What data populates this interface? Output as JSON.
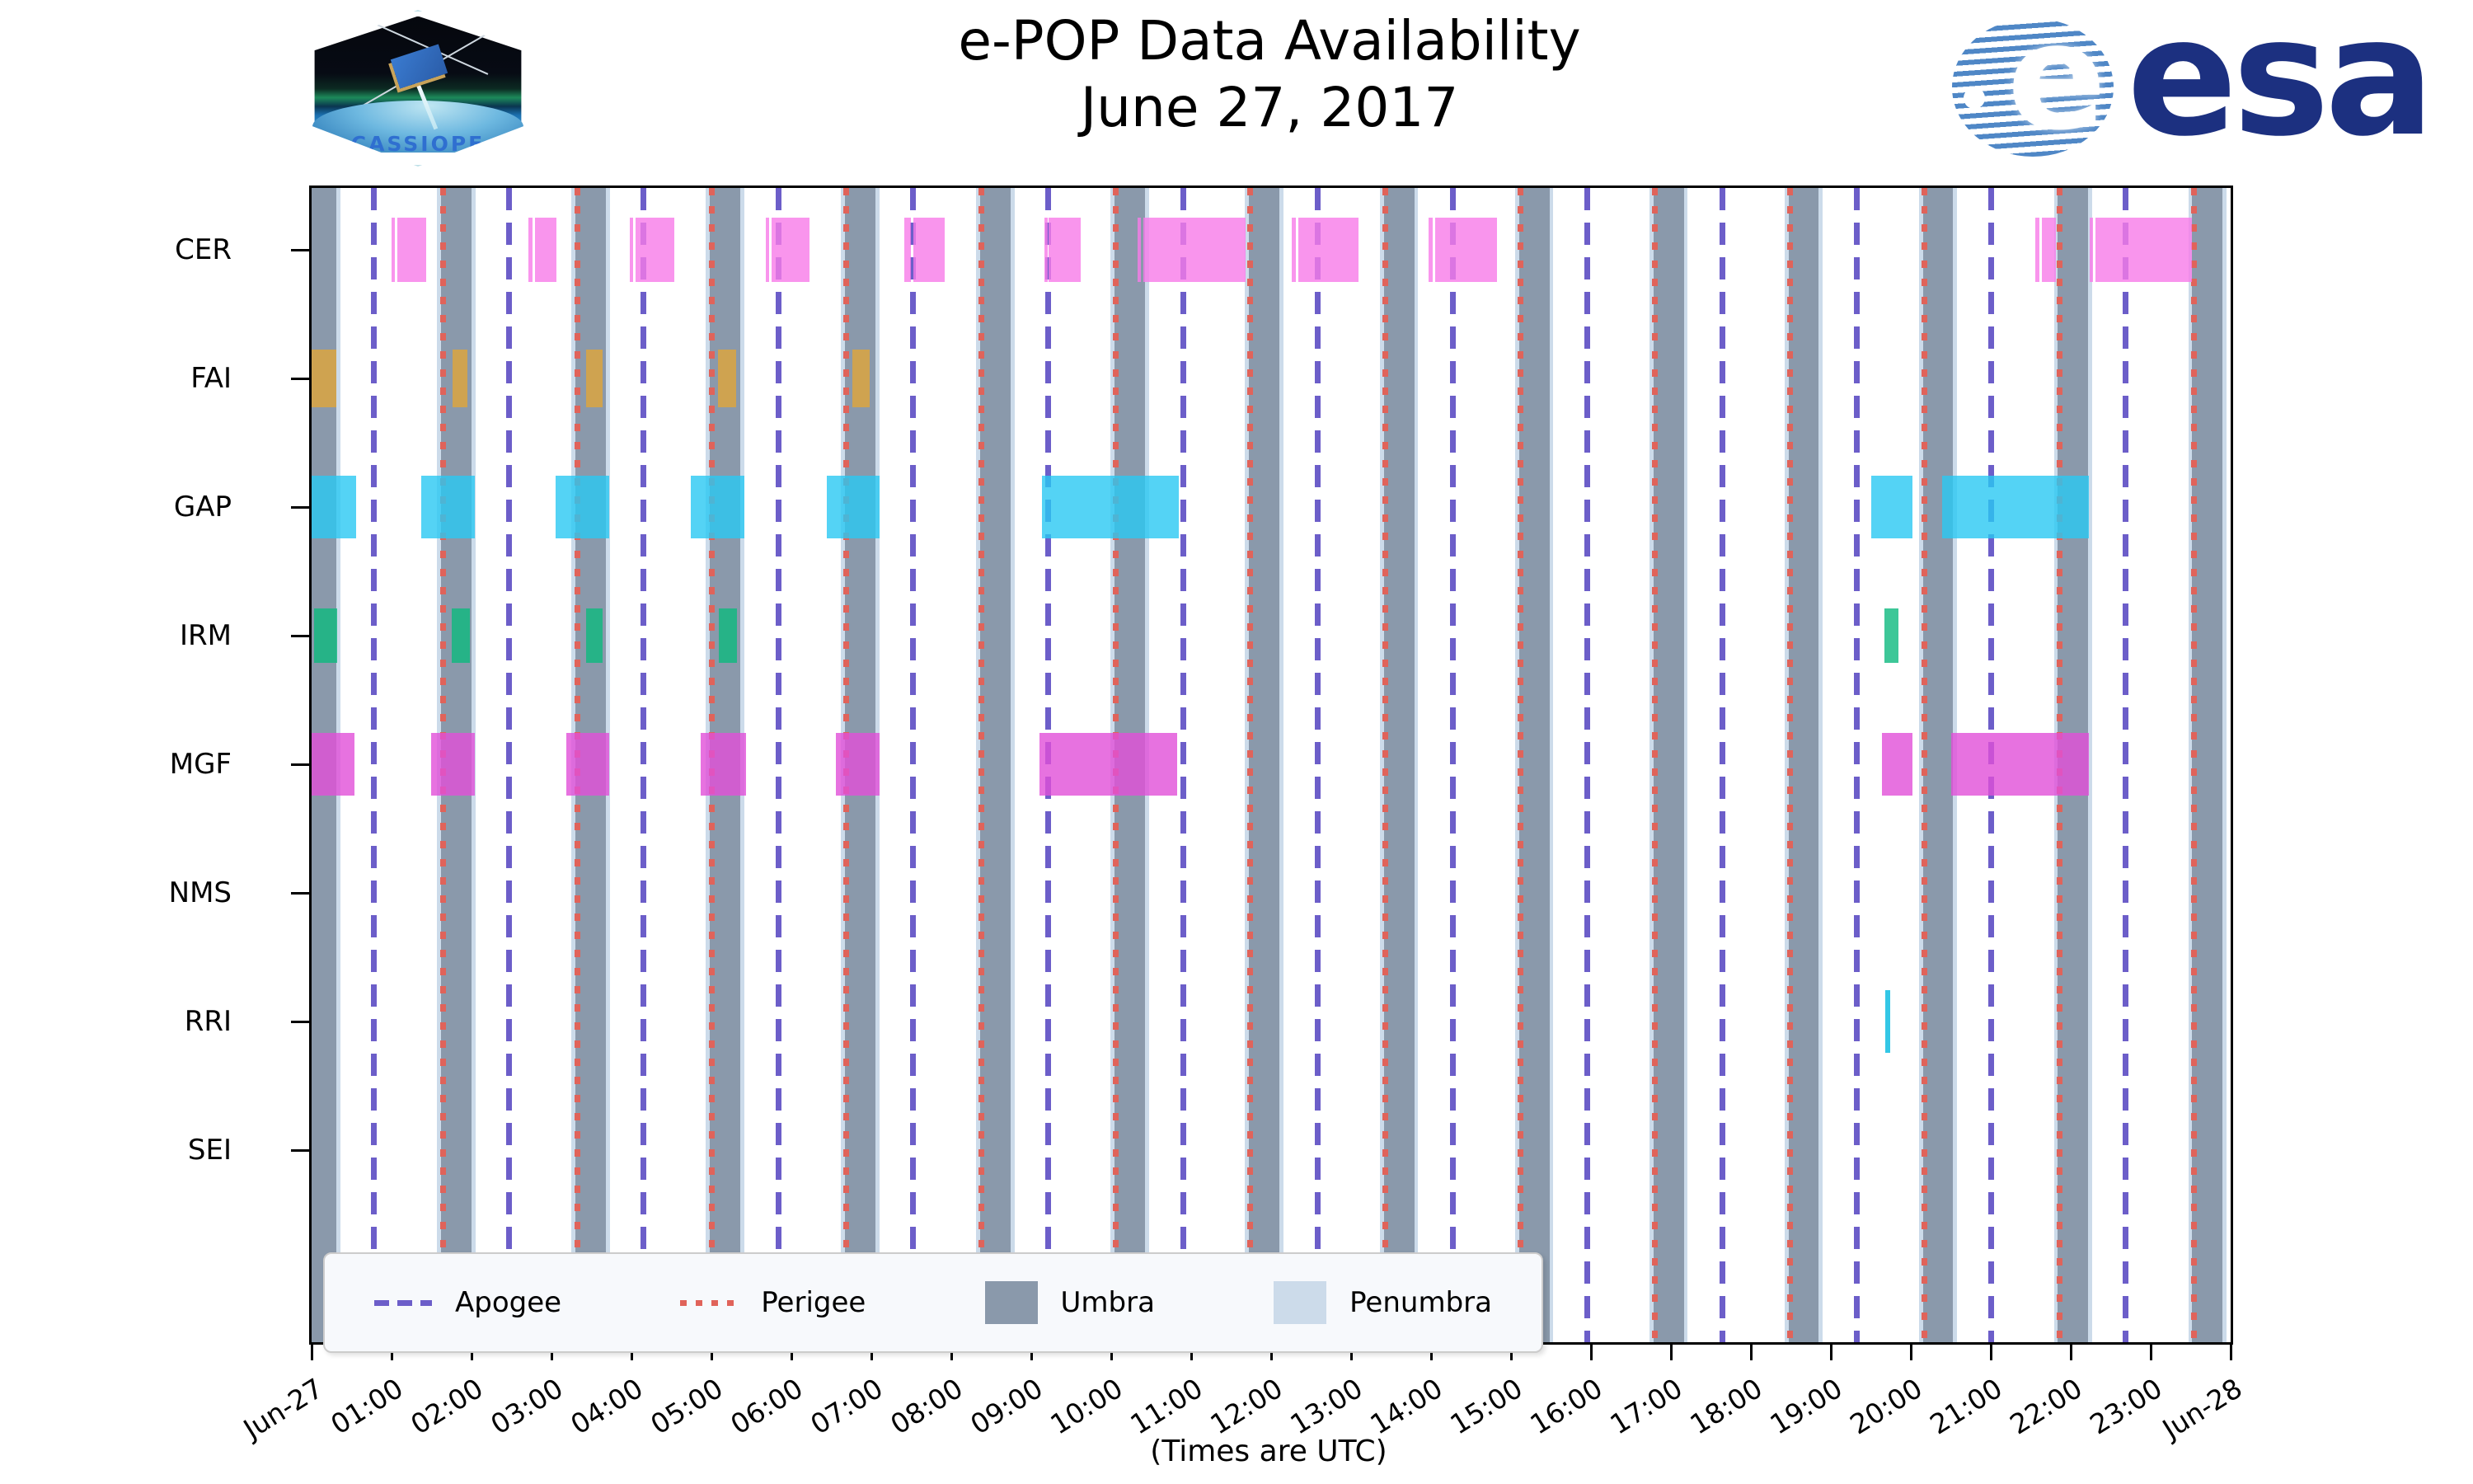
{
  "title": {
    "line1": "e-POP Data Availability",
    "line2": "June 27, 2017"
  },
  "logos": {
    "cassiope": "CASSIOPE",
    "esa": "esa"
  },
  "axis": {
    "xlabel": "(Times are UTC)"
  },
  "legend": [
    {
      "label": "Apogee",
      "style": "dashed-line",
      "color": "#6c5ec9"
    },
    {
      "label": "Perigee",
      "style": "dotted-line",
      "color": "#e0635a"
    },
    {
      "label": "Umbra",
      "style": "patch",
      "color": "#8a99ab"
    },
    {
      "label": "Penumbra",
      "style": "patch",
      "color": "#ccdbea"
    }
  ],
  "chart_data": {
    "type": "gantt",
    "title": "e-POP Data Availability June 27, 2017",
    "xlabel": "(Times are UTC)",
    "x_range_hours": [
      0,
      24
    ],
    "x_ticks": [
      {
        "t": 0,
        "label": "Jun-27"
      },
      {
        "t": 1,
        "label": "01:00"
      },
      {
        "t": 2,
        "label": "02:00"
      },
      {
        "t": 3,
        "label": "03:00"
      },
      {
        "t": 4,
        "label": "04:00"
      },
      {
        "t": 5,
        "label": "05:00"
      },
      {
        "t": 6,
        "label": "06:00"
      },
      {
        "t": 7,
        "label": "07:00"
      },
      {
        "t": 8,
        "label": "08:00"
      },
      {
        "t": 9,
        "label": "09:00"
      },
      {
        "t": 10,
        "label": "10:00"
      },
      {
        "t": 11,
        "label": "11:00"
      },
      {
        "t": 12,
        "label": "12:00"
      },
      {
        "t": 13,
        "label": "13:00"
      },
      {
        "t": 14,
        "label": "14:00"
      },
      {
        "t": 15,
        "label": "15:00"
      },
      {
        "t": 16,
        "label": "16:00"
      },
      {
        "t": 17,
        "label": "17:00"
      },
      {
        "t": 18,
        "label": "18:00"
      },
      {
        "t": 19,
        "label": "19:00"
      },
      {
        "t": 20,
        "label": "20:00"
      },
      {
        "t": 21,
        "label": "21:00"
      },
      {
        "t": 22,
        "label": "22:00"
      },
      {
        "t": 23,
        "label": "23:00"
      },
      {
        "t": 24,
        "label": "Jun-28"
      }
    ],
    "apogee_times_hours": [
      0.78,
      2.47,
      4.15,
      5.84,
      7.52,
      9.21,
      10.9,
      12.58,
      14.27,
      15.95,
      17.64,
      19.32,
      21.01,
      22.69
    ],
    "perigee_times_hours": [
      1.64,
      3.32,
      5.0,
      6.69,
      8.38,
      10.06,
      11.74,
      13.43,
      15.12,
      16.8,
      18.49,
      20.17,
      21.86,
      23.54
    ],
    "umbra_intervals_hours": [
      [
        0.0,
        0.31
      ],
      [
        1.62,
        2.0
      ],
      [
        3.3,
        3.68
      ],
      [
        4.98,
        5.36
      ],
      [
        6.67,
        7.05
      ],
      [
        8.36,
        8.74
      ],
      [
        10.04,
        10.42
      ],
      [
        11.72,
        12.1
      ],
      [
        13.41,
        13.79
      ],
      [
        15.1,
        15.48
      ],
      [
        16.78,
        17.16
      ],
      [
        18.47,
        18.85
      ],
      [
        20.15,
        20.53
      ],
      [
        21.84,
        22.22
      ],
      [
        23.52,
        23.9
      ]
    ],
    "penumbra_pad_hours": 0.05,
    "rows": [
      {
        "name": "CER",
        "color": "#f87ae8",
        "bars": [
          [
            1.0,
            1.04
          ],
          [
            1.07,
            1.43
          ],
          [
            2.71,
            2.76
          ],
          [
            2.79,
            3.06
          ],
          [
            3.98,
            4.02
          ],
          [
            4.05,
            4.54
          ],
          [
            5.68,
            5.72
          ],
          [
            5.75,
            6.23
          ],
          [
            7.41,
            7.5
          ],
          [
            7.53,
            7.92
          ],
          [
            9.16,
            9.19
          ],
          [
            9.22,
            9.62
          ],
          [
            10.33,
            10.37
          ],
          [
            10.4,
            11.68
          ],
          [
            12.26,
            12.31
          ],
          [
            12.34,
            13.09
          ],
          [
            13.97,
            14.02
          ],
          [
            14.05,
            14.82
          ],
          [
            21.56,
            21.61
          ],
          [
            21.64,
            21.81
          ],
          [
            22.24,
            22.28
          ],
          [
            22.31,
            23.52
          ]
        ]
      },
      {
        "name": "FAI",
        "color": "#e0a53a",
        "bars": [
          [
            0.0,
            0.31
          ],
          [
            1.76,
            1.95
          ],
          [
            3.43,
            3.64
          ],
          [
            5.08,
            5.31
          ],
          [
            6.76,
            6.98
          ]
        ]
      },
      {
        "name": "GAP",
        "color": "#29c8f2",
        "bars": [
          [
            0.0,
            0.56
          ],
          [
            1.37,
            2.04
          ],
          [
            3.05,
            3.72
          ],
          [
            4.74,
            5.41
          ],
          [
            6.44,
            7.1
          ],
          [
            9.13,
            10.85
          ],
          [
            19.51,
            20.02
          ],
          [
            20.39,
            22.23
          ]
        ]
      },
      {
        "name": "IRM",
        "color": "#0cb97e",
        "bars": [
          [
            0.03,
            0.32
          ],
          [
            1.75,
            1.98
          ],
          [
            3.43,
            3.64
          ],
          [
            5.09,
            5.32
          ],
          [
            19.67,
            19.85
          ]
        ]
      },
      {
        "name": "MGF",
        "color": "#e14fd8",
        "bars": [
          [
            0.0,
            0.54
          ],
          [
            1.49,
            2.04
          ],
          [
            3.19,
            3.72
          ],
          [
            4.87,
            5.43
          ],
          [
            6.56,
            7.1
          ],
          [
            9.1,
            10.82
          ],
          [
            19.64,
            20.02
          ],
          [
            20.51,
            22.23
          ]
        ]
      },
      {
        "name": "NMS",
        "color": "#e14fd8",
        "bars": []
      },
      {
        "name": "RRI",
        "color": "#00b9e0",
        "bars": [
          [
            19.68,
            19.74
          ]
        ]
      },
      {
        "name": "SEI",
        "color": "#e14fd8",
        "bars": []
      }
    ],
    "legend_entries": [
      "Apogee",
      "Perigee",
      "Umbra",
      "Penumbra"
    ],
    "legend_position": "lower-left",
    "grid": false,
    "colors": {
      "umbra": "#8a99ab",
      "penumbra": "#ccdbea",
      "apogee_line": "#6c5ec9",
      "perigee_line": "#e0635a",
      "CER": "#faa9f0",
      "FAI": "#e7ba5f",
      "GAP": "#57d7f5",
      "IRM": "#2ec695",
      "MGF": "#ea6fe3",
      "RRI": "#30c9e8"
    }
  }
}
